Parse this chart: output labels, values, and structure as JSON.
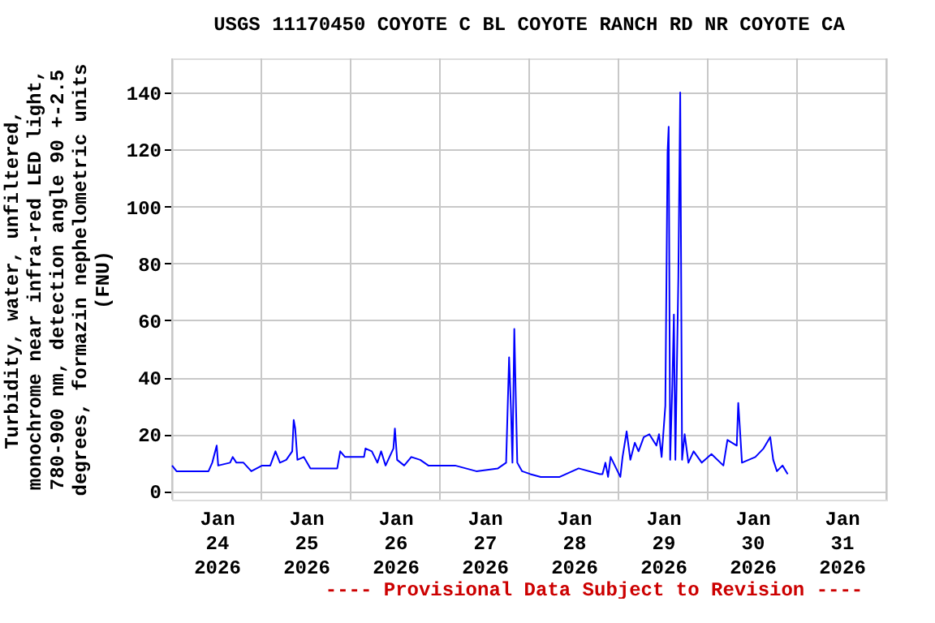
{
  "chart_data": {
    "type": "line",
    "title": "USGS 11170450 COYOTE C BL COYOTE RANCH RD NR COYOTE CA",
    "ylabel": "Turbidity, water, unfiltered,\nmonochrome near infra-red LED light,\n780-900 nm, detection angle 90 +-2.5\ndegrees, formazin nephelometric units\n(FNU)",
    "annotations": [
      "---- Provisional Data Subject to Revision ----"
    ],
    "xlim": [
      "2026-01-24T00:00",
      "2026-02-01T00:00"
    ],
    "xticks": [
      {
        "value": "2026-01-24T00:00",
        "label": null
      },
      {
        "value": "2026-01-24T12:00",
        "label": "Jan\n24\n2026"
      },
      {
        "value": "2026-01-25T00:00",
        "label": null
      },
      {
        "value": "2026-01-25T12:00",
        "label": "Jan\n25\n2026"
      },
      {
        "value": "2026-01-26T00:00",
        "label": null
      },
      {
        "value": "2026-01-26T12:00",
        "label": "Jan\n26\n2026"
      },
      {
        "value": "2026-01-27T00:00",
        "label": null
      },
      {
        "value": "2026-01-27T12:00",
        "label": "Jan\n27\n2026"
      },
      {
        "value": "2026-01-28T00:00",
        "label": null
      },
      {
        "value": "2026-01-28T12:00",
        "label": "Jan\n28\n2026"
      },
      {
        "value": "2026-01-29T00:00",
        "label": null
      },
      {
        "value": "2026-01-29T12:00",
        "label": "Jan\n29\n2026"
      },
      {
        "value": "2026-01-30T00:00",
        "label": null
      },
      {
        "value": "2026-01-30T12:00",
        "label": "Jan\n30\n2026"
      },
      {
        "value": "2026-01-31T00:00",
        "label": null
      },
      {
        "value": "2026-01-31T12:00",
        "label": "Jan\n31\n2026"
      },
      {
        "value": "2026-02-01T00:00",
        "label": null
      }
    ],
    "ylim": [
      -3,
      152
    ],
    "yticks": [
      0,
      20,
      40,
      60,
      80,
      100,
      120,
      140
    ],
    "grid": true,
    "line_style": "solid",
    "x": [
      "2026-01-24T00:00",
      "2026-01-24T01:12",
      "2026-01-24T05:30",
      "2026-01-24T09:48",
      "2026-01-24T10:48",
      "2026-01-24T12:00",
      "2026-01-24T12:24",
      "2026-01-24T15:36",
      "2026-01-24T16:18",
      "2026-01-24T17:18",
      "2026-01-24T19:12",
      "2026-01-24T21:18",
      "2026-01-25T00:12",
      "2026-01-25T02:24",
      "2026-01-25T03:48",
      "2026-01-25T05:00",
      "2026-01-25T06:42",
      "2026-01-25T08:18",
      "2026-01-25T08:42",
      "2026-01-25T09:06",
      "2026-01-25T09:42",
      "2026-01-25T11:24",
      "2026-01-25T13:12",
      "2026-01-25T20:24",
      "2026-01-25T21:12",
      "2026-01-25T22:30",
      "2026-01-26T03:36",
      "2026-01-26T04:00",
      "2026-01-26T05:42",
      "2026-01-26T07:12",
      "2026-01-26T08:12",
      "2026-01-26T09:24",
      "2026-01-26T11:30",
      "2026-01-26T11:54",
      "2026-01-26T12:30",
      "2026-01-26T14:24",
      "2026-01-26T16:18",
      "2026-01-26T18:42",
      "2026-01-26T20:54",
      "2026-01-27T04:06",
      "2026-01-27T09:48",
      "2026-01-27T15:36",
      "2026-01-27T17:48",
      "2026-01-27T18:36",
      "2026-01-27T19:06",
      "2026-01-27T19:30",
      "2026-01-27T20:00",
      "2026-01-27T20:24",
      "2026-01-27T20:48",
      "2026-01-27T22:06",
      "2026-01-28T00:18",
      "2026-01-28T03:06",
      "2026-01-28T08:12",
      "2026-01-28T13:18",
      "2026-01-28T19:00",
      "2026-01-28T19:42",
      "2026-01-28T20:30",
      "2026-01-28T21:12",
      "2026-01-28T21:54",
      "2026-01-29T00:30",
      "2026-01-29T01:06",
      "2026-01-29T02:12",
      "2026-01-29T03:12",
      "2026-01-29T04:24",
      "2026-01-29T05:24",
      "2026-01-29T06:48",
      "2026-01-29T08:18",
      "2026-01-29T10:12",
      "2026-01-29T10:54",
      "2026-01-29T11:36",
      "2026-01-29T12:36",
      "2026-01-29T13:12",
      "2026-01-29T13:30",
      "2026-01-29T13:54",
      "2026-01-29T14:30",
      "2026-01-29T14:54",
      "2026-01-29T15:18",
      "2026-01-29T16:06",
      "2026-01-29T16:36",
      "2026-01-29T17:06",
      "2026-01-29T17:48",
      "2026-01-29T18:48",
      "2026-01-29T20:12",
      "2026-01-29T22:24",
      "2026-01-30T01:00",
      "2026-01-30T04:12",
      "2026-01-30T05:18",
      "2026-01-30T07:48",
      "2026-01-30T08:12",
      "2026-01-30T08:36",
      "2026-01-30T09:12",
      "2026-01-30T12:48",
      "2026-01-30T15:00",
      "2026-01-30T16:48",
      "2026-01-30T17:36",
      "2026-01-30T18:36",
      "2026-01-30T20:06",
      "2026-01-30T21:30"
    ],
    "series": [
      {
        "color": "#0000ff",
        "values": [
          9,
          7,
          7,
          7,
          10,
          16,
          9,
          10,
          12,
          10,
          10,
          7,
          9,
          9,
          14,
          10,
          11,
          14,
          25,
          22,
          11,
          12,
          8,
          8,
          14,
          12,
          12,
          15,
          14,
          10,
          14,
          9,
          15,
          22,
          11,
          9,
          12,
          11,
          9,
          9,
          7,
          8,
          10,
          47,
          29,
          10,
          57,
          33,
          10,
          7,
          6,
          5,
          5,
          8,
          6,
          6,
          10,
          5,
          12,
          5,
          12,
          21,
          11,
          17,
          14,
          19,
          20,
          16,
          20,
          12,
          30,
          119,
          128,
          11,
          38,
          62,
          11,
          75,
          140,
          11,
          20,
          10,
          14,
          10,
          13,
          9,
          18,
          16,
          31,
          23,
          10,
          12,
          15,
          19,
          11,
          7,
          9,
          6
        ]
      }
    ]
  }
}
